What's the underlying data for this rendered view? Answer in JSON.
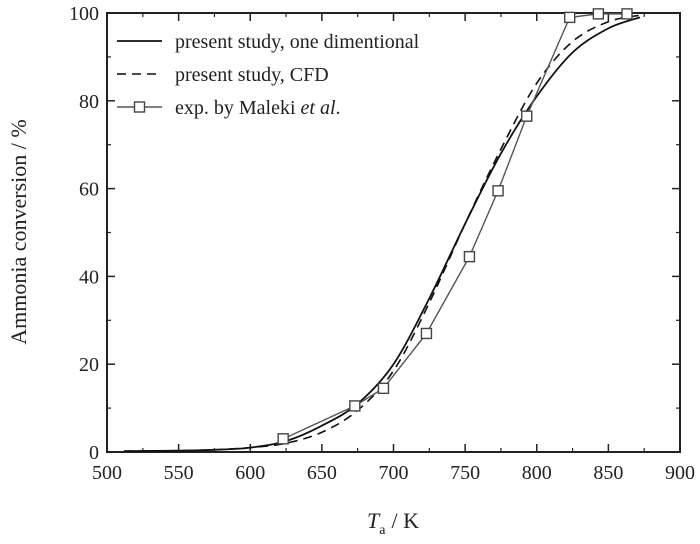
{
  "chart_data": {
    "type": "line",
    "xlabel_symbol": "T",
    "xlabel_subscript": "a",
    "xlabel_unit": "/ K",
    "ylabel": "Ammonia conversion / %",
    "xlim": [
      500,
      900
    ],
    "ylim": [
      0,
      100
    ],
    "x_ticks": [
      500,
      550,
      600,
      650,
      700,
      750,
      800,
      850,
      900
    ],
    "y_ticks": [
      0,
      20,
      40,
      60,
      80,
      100
    ],
    "x_tick_labels": [
      "500",
      "550",
      "600",
      "650",
      "700",
      "750",
      "800",
      "850",
      "900"
    ],
    "y_tick_labels": [
      "0",
      "20",
      "40",
      "60",
      "80",
      "100"
    ],
    "legend": {
      "placement": "top-left",
      "entries": [
        {
          "label": "present study, one dimentional",
          "style": "solid"
        },
        {
          "label": "present study, CFD",
          "style": "dashed"
        },
        {
          "label_prefix": "exp. by Maleki ",
          "label_italic": "et al",
          "label_suffix": ".",
          "style": "solid-square-markers"
        }
      ]
    },
    "series": [
      {
        "name": "present study, one dimentional",
        "style": "solid",
        "x": [
          512,
          550,
          575,
          600,
          625,
          650,
          675,
          700,
          725,
          750,
          775,
          800,
          825,
          850,
          872
        ],
        "y": [
          0.2,
          0.3,
          0.5,
          1.0,
          2.5,
          6.0,
          11.0,
          20.0,
          35.0,
          52.0,
          68.0,
          81.0,
          91.0,
          96.5,
          99.0
        ]
      },
      {
        "name": "present study, CFD",
        "style": "dashed",
        "x": [
          512,
          550,
          575,
          600,
          625,
          650,
          675,
          700,
          725,
          750,
          775,
          800,
          825,
          850,
          872
        ],
        "y": [
          0.2,
          0.3,
          0.5,
          1.0,
          2.0,
          4.5,
          9.5,
          18.5,
          34.0,
          52.0,
          69.0,
          84.0,
          93.5,
          98.0,
          99.5
        ]
      },
      {
        "name": "exp. by Maleki et al.",
        "style": "solid-square-markers",
        "x": [
          623,
          673,
          693,
          723,
          753,
          773,
          793,
          823,
          843,
          863
        ],
        "y": [
          3.0,
          10.5,
          14.5,
          27.0,
          44.5,
          59.5,
          76.5,
          99.0,
          99.8,
          99.8
        ]
      }
    ]
  }
}
